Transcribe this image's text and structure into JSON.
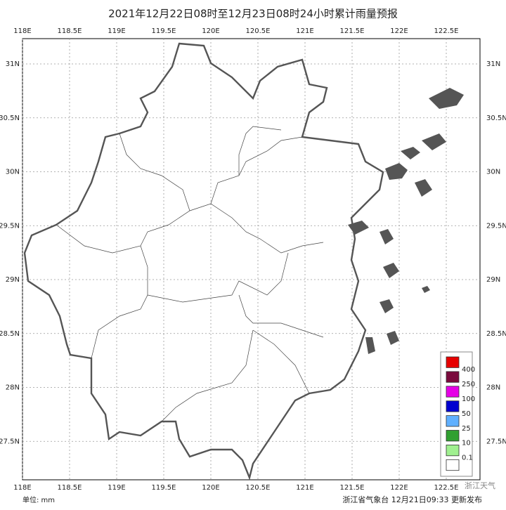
{
  "map": {
    "title": "2021年12月22日08时至12月23日08时24小时累计雨量预报",
    "lon_ticks": [
      {
        "value": 118,
        "label": "118E"
      },
      {
        "value": 118.5,
        "label": "118.5E"
      },
      {
        "value": 119,
        "label": "119E"
      },
      {
        "value": 119.5,
        "label": "119.5E"
      },
      {
        "value": 120,
        "label": "120E"
      },
      {
        "value": 120.5,
        "label": "120.5E"
      },
      {
        "value": 121,
        "label": "121E"
      },
      {
        "value": 121.5,
        "label": "121.5E"
      },
      {
        "value": 122,
        "label": "122E"
      },
      {
        "value": 122.5,
        "label": "122.5E"
      }
    ],
    "lat_ticks": [
      {
        "value": 31,
        "label": "31N"
      },
      {
        "value": 30.5,
        "label": "30.5N"
      },
      {
        "value": 30,
        "label": "30N"
      },
      {
        "value": 29.5,
        "label": "29.5N"
      },
      {
        "value": 29,
        "label": "29N"
      },
      {
        "value": 28.5,
        "label": "28.5N"
      },
      {
        "value": 28,
        "label": "28N"
      },
      {
        "value": 27.5,
        "label": "27.5N"
      }
    ],
    "legend": {
      "colors": [
        "#e60000",
        "#7a0a3c",
        "#e600e6",
        "#0000d0",
        "#60b0ff",
        "#30a030",
        "#a0f090",
        "#ffffff"
      ],
      "labels": [
        "400",
        "250",
        "100",
        "50",
        "25",
        "10",
        "0.1"
      ]
    },
    "unit": "单位: mm",
    "footer": "浙江省气象台 12月21日09:33 更新发布",
    "watermark": "浙江天气"
  }
}
